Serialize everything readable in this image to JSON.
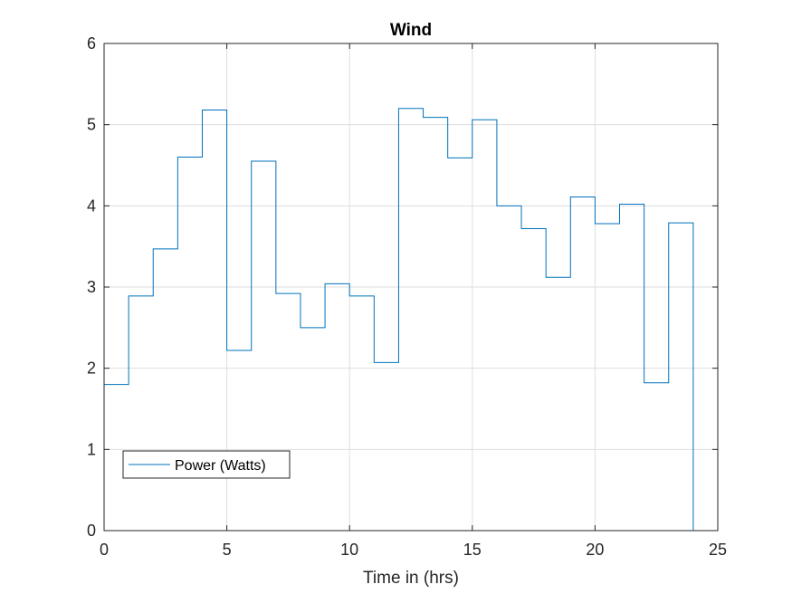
{
  "chart_data": {
    "type": "line",
    "style": "stairs",
    "title": "Wind",
    "xlabel": "Time in (hrs)",
    "ylabel": "",
    "xlim": [
      0,
      25
    ],
    "ylim": [
      0,
      6
    ],
    "xticks": [
      0,
      5,
      10,
      15,
      20,
      25
    ],
    "yticks": [
      0,
      1,
      2,
      3,
      4,
      5,
      6
    ],
    "grid": true,
    "legend_position": "bottom-left",
    "series": [
      {
        "name": "Power (Watts)",
        "color": "#0072BD",
        "x": [
          0,
          1,
          2,
          3,
          4,
          5,
          6,
          7,
          8,
          9,
          10,
          11,
          12,
          13,
          14,
          15,
          16,
          17,
          18,
          19,
          20,
          21,
          22,
          23,
          24
        ],
        "values": [
          1.8,
          2.89,
          3.47,
          4.6,
          5.18,
          2.22,
          4.55,
          2.92,
          2.5,
          3.04,
          2.89,
          2.07,
          5.2,
          5.09,
          4.59,
          5.06,
          4.0,
          3.72,
          3.12,
          4.11,
          3.78,
          4.02,
          1.82,
          3.79,
          0
        ]
      }
    ]
  }
}
